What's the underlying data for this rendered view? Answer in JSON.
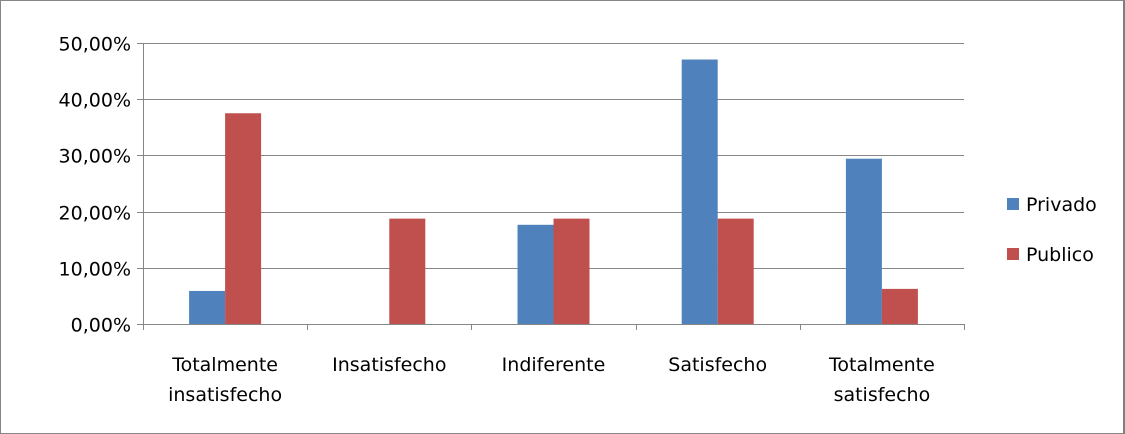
{
  "chart_data": {
    "type": "bar",
    "title": "",
    "xlabel": "",
    "ylabel": "",
    "categories": [
      [
        "Totalmente",
        "insatisfecho"
      ],
      [
        "Insatisfecho"
      ],
      [
        "Indiferente"
      ],
      [
        "Satisfecho"
      ],
      [
        "Totalmente",
        "satisfecho"
      ]
    ],
    "series": [
      {
        "name": "Privado",
        "color": "#4f81bd",
        "values": [
          5.88,
          0,
          17.65,
          47.06,
          29.41
        ]
      },
      {
        "name": "Publico",
        "color": "#c0504d",
        "values": [
          37.5,
          18.75,
          18.75,
          18.75,
          6.25
        ]
      }
    ],
    "ylim": [
      0,
      50
    ],
    "y_ticks": [
      0,
      10,
      20,
      30,
      40,
      50
    ],
    "y_tick_labels": [
      "0,00%",
      "10,00%",
      "20,00%",
      "30,00%",
      "40,00%",
      "50,00%"
    ],
    "grid": true,
    "legend_position": "right"
  }
}
